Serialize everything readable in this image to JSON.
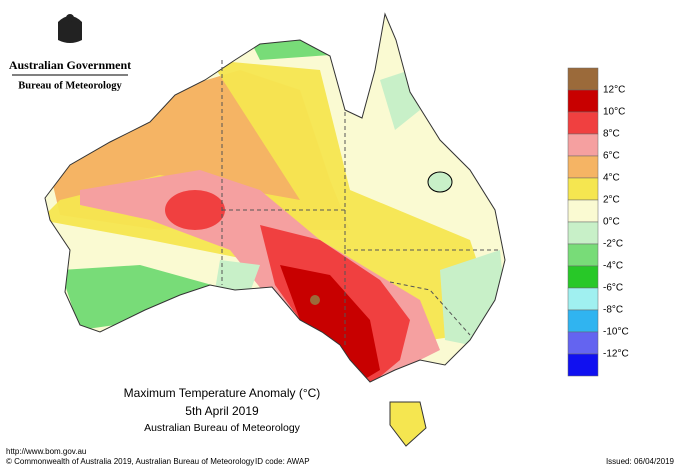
{
  "header": {
    "government": "Australian Government",
    "agency": "Bureau of Meteorology"
  },
  "map": {
    "title": "Maximum Temperature Anomaly (°C)",
    "date": "5th April 2019",
    "source": "Australian Bureau of Meteorology"
  },
  "legend": {
    "colors": [
      "#9b6a3a",
      "#c80000",
      "#f04040",
      "#f5a0a0",
      "#f5b464",
      "#f5e650",
      "#fafad2",
      "#c8f0c8",
      "#78dc78",
      "#28c828",
      "#a0f0f0",
      "#30b4f0",
      "#6464f0",
      "#1010f0"
    ],
    "labels": [
      "12°C",
      "10°C",
      "8°C",
      "6°C",
      "4°C",
      "2°C",
      "0°C",
      "-2°C",
      "-4°C",
      "-6°C",
      "-8°C",
      "-10°C",
      "-12°C"
    ]
  },
  "footer": {
    "url": "http://www.bom.gov.au",
    "copyright": "© Commonwealth of Australia 2019, Australian Bureau of Meteorology",
    "id_code": "ID code: AWAP",
    "issued": "Issued: 06/04/2019"
  }
}
